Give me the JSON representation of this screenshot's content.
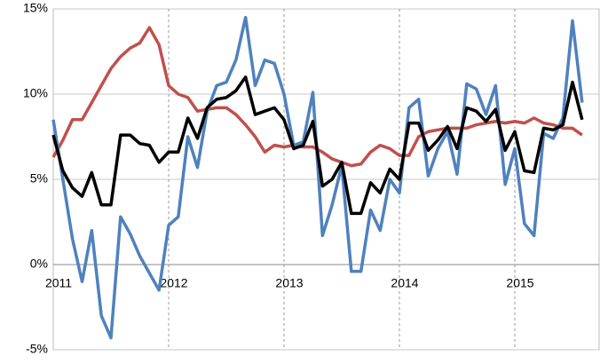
{
  "chart_data": {
    "type": "line",
    "categories": [
      "2011",
      null,
      null,
      null,
      null,
      null,
      null,
      null,
      null,
      null,
      null,
      null,
      "2012",
      null,
      null,
      null,
      null,
      null,
      null,
      null,
      null,
      null,
      null,
      null,
      "2013",
      null,
      null,
      null,
      null,
      null,
      null,
      null,
      null,
      null,
      null,
      null,
      "2014",
      null,
      null,
      null,
      null,
      null,
      null,
      null,
      null,
      null,
      null,
      null,
      "2015",
      null,
      null,
      null,
      null,
      null,
      null,
      null
    ],
    "series": [
      {
        "color": "#c0504d",
        "values": [
          6.3,
          7.3,
          8.5,
          8.5,
          9.5,
          10.5,
          11.5,
          12.2,
          12.7,
          13.0,
          13.9,
          12.9,
          10.5,
          10.0,
          9.8,
          9.0,
          9.1,
          9.2,
          9.2,
          8.8,
          8.2,
          7.5,
          6.6,
          7.0,
          6.9,
          7.0,
          6.9,
          6.9,
          6.6,
          6.2,
          6.0,
          5.8,
          5.9,
          6.6,
          7.0,
          6.8,
          6.4,
          6.4,
          7.5,
          7.8,
          7.9,
          8.0,
          8.0,
          8.0,
          8.2,
          8.3,
          8.4,
          8.3,
          8.4,
          8.3,
          8.6,
          8.3,
          8.2,
          8.0,
          8.0,
          7.6
        ]
      },
      {
        "color": "#4f81bd",
        "values": [
          8.5,
          5,
          1.5,
          -1,
          2,
          -3,
          -4.3,
          2.8,
          1.8,
          0.5,
          -0.5,
          -1.5,
          2.3,
          2.8,
          7.5,
          5.7,
          9.0,
          10.5,
          10.7,
          12,
          14.5,
          10.5,
          12,
          11.8,
          10,
          7,
          7.2,
          10.1,
          1.7,
          3.5,
          5.8,
          -0.4,
          -0.4,
          3.2,
          2,
          5,
          4.2,
          9.2,
          9.7,
          5.2,
          6.8,
          7.8,
          5.3,
          10.6,
          10.3,
          8.8,
          10.5,
          4.7,
          6.8,
          2.4,
          1.7,
          7.7,
          7.4,
          8.6,
          14.3,
          9.5
        ]
      },
      {
        "color": "#000000",
        "values": [
          7.6,
          5.5,
          4.5,
          4.0,
          5.4,
          3.5,
          3.5,
          7.6,
          7.6,
          7.1,
          7.0,
          6.0,
          6.6,
          6.6,
          8.6,
          7.4,
          9.2,
          9.7,
          9.8,
          10.2,
          11.0,
          8.8,
          9.0,
          9.2,
          8.5,
          6.8,
          7.0,
          8.4,
          4.6,
          5.0,
          6.0,
          3.0,
          3.0,
          4.8,
          4.2,
          5.6,
          5.0,
          8.3,
          8.3,
          6.7,
          7.3,
          8.1,
          6.8,
          9.2,
          9.0,
          8.4,
          9.1,
          6.7,
          7.8,
          5.5,
          5.4,
          8.0,
          7.9,
          8.2,
          10.7,
          8.5
        ]
      }
    ],
    "ylim": [
      -5,
      15
    ],
    "yticks": [
      {
        "value": -5,
        "label": "-5%"
      },
      {
        "value": 0,
        "label": "0%"
      },
      {
        "value": 5,
        "label": "5%"
      },
      {
        "value": 10,
        "label": "10%"
      },
      {
        "value": 15,
        "label": "15%"
      }
    ],
    "grid": true
  }
}
